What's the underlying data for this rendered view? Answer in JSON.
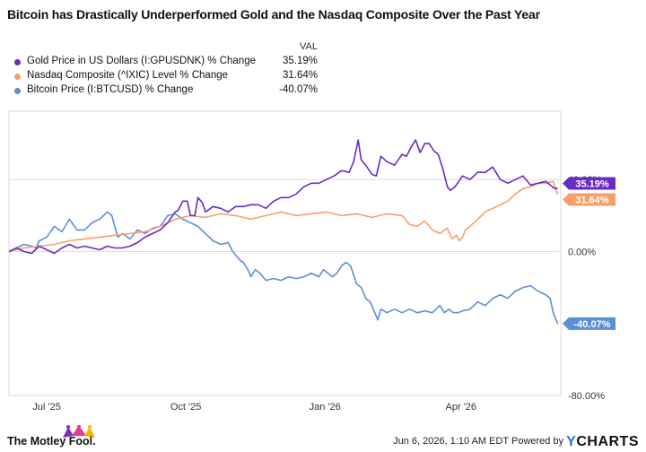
{
  "title": "Bitcoin has Drastically Underperformed Gold and the Nasdaq Composite Over the Past Year",
  "legend": {
    "header": "VAL",
    "items": [
      {
        "name": "Gold Price in US Dollars (I:GPUSDNK) % Change",
        "value": "35.19%",
        "color": "#6a2bc4"
      },
      {
        "name": "Nasdaq Composite (^IXIC) Level % Change",
        "value": "31.64%",
        "color": "#f5a06a"
      },
      {
        "name": "Bitcoin Price (I:BTCUSD) % Change",
        "value": "-40.07%",
        "color": "#5b8fd6"
      }
    ]
  },
  "footer": {
    "brand": "The Motley Fool.",
    "timestamp": "Jun 6, 2026, 1:10 AM EDT Powered by",
    "ycharts_y": "Y",
    "ycharts_rest": "CHARTS"
  },
  "chart_data": {
    "type": "line",
    "x_tick_labels": [
      "Jul '25",
      "Oct '25",
      "Jan '26",
      "Apr '26"
    ],
    "y_tick_labels": [
      "40.00%",
      "0.00%",
      "-80.00%"
    ],
    "y_ticks": [
      40,
      0,
      -80
    ],
    "ylim": [
      -80,
      78
    ],
    "xlim": [
      0,
      365
    ],
    "x_tick_positions": [
      25,
      117,
      209,
      299
    ],
    "grid": "horizontal",
    "series": [
      {
        "name": "Gold Price in US Dollars (I:GPUSDNK) % Change",
        "color": "#6a2bc4",
        "end_label": "35.19%",
        "points": [
          [
            0,
            0
          ],
          [
            5,
            2
          ],
          [
            10,
            0
          ],
          [
            15,
            -1
          ],
          [
            20,
            3
          ],
          [
            25,
            1
          ],
          [
            30,
            -1
          ],
          [
            35,
            2
          ],
          [
            40,
            4
          ],
          [
            45,
            2
          ],
          [
            50,
            3
          ],
          [
            55,
            2
          ],
          [
            60,
            1
          ],
          [
            65,
            3
          ],
          [
            70,
            2
          ],
          [
            75,
            2
          ],
          [
            80,
            3
          ],
          [
            85,
            5
          ],
          [
            90,
            8
          ],
          [
            95,
            10
          ],
          [
            100,
            12
          ],
          [
            105,
            16
          ],
          [
            110,
            22
          ],
          [
            112,
            23
          ],
          [
            115,
            28
          ],
          [
            118,
            28
          ],
          [
            120,
            20
          ],
          [
            123,
            20
          ],
          [
            125,
            30
          ],
          [
            128,
            27
          ],
          [
            130,
            22
          ],
          [
            135,
            25
          ],
          [
            140,
            24
          ],
          [
            145,
            22
          ],
          [
            150,
            25
          ],
          [
            155,
            25
          ],
          [
            160,
            26
          ],
          [
            165,
            26
          ],
          [
            170,
            24
          ],
          [
            175,
            28
          ],
          [
            180,
            30
          ],
          [
            185,
            30
          ],
          [
            190,
            32
          ],
          [
            195,
            36
          ],
          [
            200,
            38
          ],
          [
            205,
            38
          ],
          [
            210,
            40
          ],
          [
            215,
            42
          ],
          [
            220,
            45
          ],
          [
            225,
            44
          ],
          [
            228,
            50
          ],
          [
            231,
            62
          ],
          [
            233,
            51
          ],
          [
            236,
            48
          ],
          [
            240,
            43
          ],
          [
            243,
            42
          ],
          [
            246,
            53
          ],
          [
            250,
            50
          ],
          [
            255,
            48
          ],
          [
            260,
            54
          ],
          [
            263,
            53
          ],
          [
            266,
            58
          ],
          [
            269,
            62
          ],
          [
            272,
            55
          ],
          [
            275,
            60
          ],
          [
            278,
            60
          ],
          [
            281,
            56
          ],
          [
            284,
            54
          ],
          [
            287,
            46
          ],
          [
            290,
            36
          ],
          [
            292,
            34
          ],
          [
            295,
            36
          ],
          [
            300,
            42
          ],
          [
            305,
            40
          ],
          [
            310,
            44
          ],
          [
            315,
            44
          ],
          [
            320,
            47
          ],
          [
            325,
            40
          ],
          [
            330,
            38
          ],
          [
            335,
            40
          ],
          [
            340,
            42
          ],
          [
            345,
            37
          ],
          [
            350,
            38
          ],
          [
            355,
            39
          ],
          [
            358,
            37
          ],
          [
            361,
            35
          ],
          [
            363,
            35.19
          ]
        ]
      },
      {
        "name": "Nasdaq Composite (^IXIC) Level % Change",
        "color": "#f5a06a",
        "end_label": "31.64%",
        "points": [
          [
            0,
            0
          ],
          [
            10,
            2
          ],
          [
            20,
            3
          ],
          [
            30,
            4
          ],
          [
            40,
            6
          ],
          [
            50,
            7
          ],
          [
            60,
            8
          ],
          [
            70,
            9
          ],
          [
            80,
            10
          ],
          [
            90,
            11
          ],
          [
            100,
            14
          ],
          [
            110,
            18
          ],
          [
            120,
            20
          ],
          [
            130,
            19
          ],
          [
            140,
            21
          ],
          [
            150,
            20
          ],
          [
            160,
            18
          ],
          [
            170,
            20
          ],
          [
            180,
            22
          ],
          [
            190,
            20
          ],
          [
            200,
            21
          ],
          [
            210,
            22
          ],
          [
            220,
            20
          ],
          [
            230,
            21
          ],
          [
            240,
            19
          ],
          [
            250,
            21
          ],
          [
            260,
            20
          ],
          [
            265,
            15
          ],
          [
            270,
            14
          ],
          [
            275,
            17
          ],
          [
            280,
            12
          ],
          [
            285,
            10
          ],
          [
            290,
            13
          ],
          [
            293,
            7
          ],
          [
            296,
            9
          ],
          [
            298,
            6
          ],
          [
            300,
            8
          ],
          [
            302,
            12
          ],
          [
            305,
            14
          ],
          [
            310,
            18
          ],
          [
            315,
            22
          ],
          [
            320,
            24
          ],
          [
            325,
            26
          ],
          [
            330,
            28
          ],
          [
            335,
            32
          ],
          [
            340,
            35
          ],
          [
            345,
            36
          ],
          [
            350,
            38
          ],
          [
            355,
            38
          ],
          [
            360,
            39
          ],
          [
            363,
            31.64
          ]
        ]
      },
      {
        "name": "Bitcoin Price (I:BTCUSD) % Change",
        "color": "#5b8fd6",
        "end_label": "-40.07%",
        "points": [
          [
            0,
            0
          ],
          [
            5,
            2
          ],
          [
            10,
            4
          ],
          [
            15,
            3
          ],
          [
            18,
            2
          ],
          [
            20,
            6
          ],
          [
            25,
            8
          ],
          [
            30,
            14
          ],
          [
            35,
            11
          ],
          [
            40,
            18
          ],
          [
            45,
            12
          ],
          [
            50,
            12
          ],
          [
            55,
            16
          ],
          [
            60,
            18
          ],
          [
            65,
            22
          ],
          [
            68,
            20
          ],
          [
            70,
            14
          ],
          [
            72,
            8
          ],
          [
            75,
            10
          ],
          [
            80,
            7
          ],
          [
            85,
            12
          ],
          [
            90,
            10
          ],
          [
            95,
            13
          ],
          [
            100,
            14
          ],
          [
            105,
            20
          ],
          [
            110,
            21
          ],
          [
            115,
            18
          ],
          [
            120,
            16
          ],
          [
            125,
            14
          ],
          [
            130,
            10
          ],
          [
            135,
            6
          ],
          [
            140,
            4
          ],
          [
            145,
            5
          ],
          [
            148,
            0
          ],
          [
            150,
            -2
          ],
          [
            153,
            -5
          ],
          [
            155,
            -6
          ],
          [
            158,
            -10
          ],
          [
            160,
            -14
          ],
          [
            163,
            -10
          ],
          [
            166,
            -12
          ],
          [
            170,
            -16
          ],
          [
            175,
            -15
          ],
          [
            180,
            -16
          ],
          [
            185,
            -14
          ],
          [
            190,
            -15
          ],
          [
            195,
            -14
          ],
          [
            200,
            -12
          ],
          [
            205,
            -14
          ],
          [
            208,
            -10
          ],
          [
            211,
            -12
          ],
          [
            214,
            -14
          ],
          [
            217,
            -12
          ],
          [
            220,
            -8
          ],
          [
            223,
            -6
          ],
          [
            226,
            -8
          ],
          [
            230,
            -18
          ],
          [
            233,
            -20
          ],
          [
            236,
            -26
          ],
          [
            239,
            -28
          ],
          [
            242,
            -34
          ],
          [
            244,
            -38
          ],
          [
            246,
            -32
          ],
          [
            250,
            -34
          ],
          [
            255,
            -32
          ],
          [
            260,
            -34
          ],
          [
            265,
            -32
          ],
          [
            270,
            -34
          ],
          [
            275,
            -33
          ],
          [
            280,
            -34
          ],
          [
            285,
            -30
          ],
          [
            288,
            -34
          ],
          [
            291,
            -32
          ],
          [
            294,
            -34
          ],
          [
            297,
            -34
          ],
          [
            300,
            -33
          ],
          [
            305,
            -32
          ],
          [
            310,
            -28
          ],
          [
            315,
            -30
          ],
          [
            320,
            -26
          ],
          [
            325,
            -24
          ],
          [
            330,
            -26
          ],
          [
            335,
            -22
          ],
          [
            340,
            -20
          ],
          [
            345,
            -19
          ],
          [
            350,
            -22
          ],
          [
            355,
            -24
          ],
          [
            358,
            -26
          ],
          [
            360,
            -34
          ],
          [
            363,
            -40.07
          ]
        ]
      }
    ]
  }
}
